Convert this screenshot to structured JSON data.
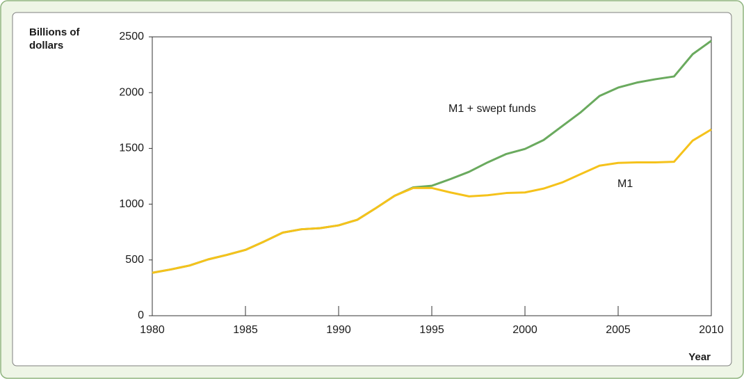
{
  "chart_data": {
    "type": "line",
    "ylabel": [
      "Billions of",
      "dollars"
    ],
    "xlabel": "Year",
    "x": [
      1980,
      1981,
      1982,
      1983,
      1984,
      1985,
      1986,
      1987,
      1988,
      1989,
      1990,
      1991,
      1992,
      1993,
      1994,
      1995,
      1996,
      1997,
      1998,
      1999,
      2000,
      2001,
      2002,
      2003,
      2004,
      2005,
      2006,
      2007,
      2008,
      2009,
      2010
    ],
    "series": [
      {
        "name": "M1 + swept funds",
        "color": "#6aaa5e",
        "values": [
          385,
          415,
          450,
          505,
          545,
          590,
          665,
          745,
          775,
          785,
          810,
          860,
          965,
          1075,
          1150,
          1165,
          1225,
          1290,
          1375,
          1450,
          1495,
          1575,
          1700,
          1825,
          1970,
          2045,
          2090,
          2120,
          2145,
          2345,
          2465
        ]
      },
      {
        "name": "M1",
        "color": "#f5c21b",
        "values": [
          385,
          415,
          450,
          505,
          545,
          590,
          665,
          745,
          775,
          785,
          810,
          860,
          965,
          1075,
          1145,
          1145,
          1105,
          1070,
          1080,
          1100,
          1105,
          1140,
          1195,
          1270,
          1345,
          1370,
          1375,
          1375,
          1380,
          1570,
          1670
        ]
      }
    ],
    "xlim": [
      1980,
      2010
    ],
    "xticks": [
      1980,
      1985,
      1990,
      1995,
      2000,
      2005,
      2010
    ],
    "ylim": [
      0,
      2500
    ],
    "yticks": [
      0,
      500,
      1000,
      1500,
      2000,
      2500
    ],
    "grid": false
  }
}
